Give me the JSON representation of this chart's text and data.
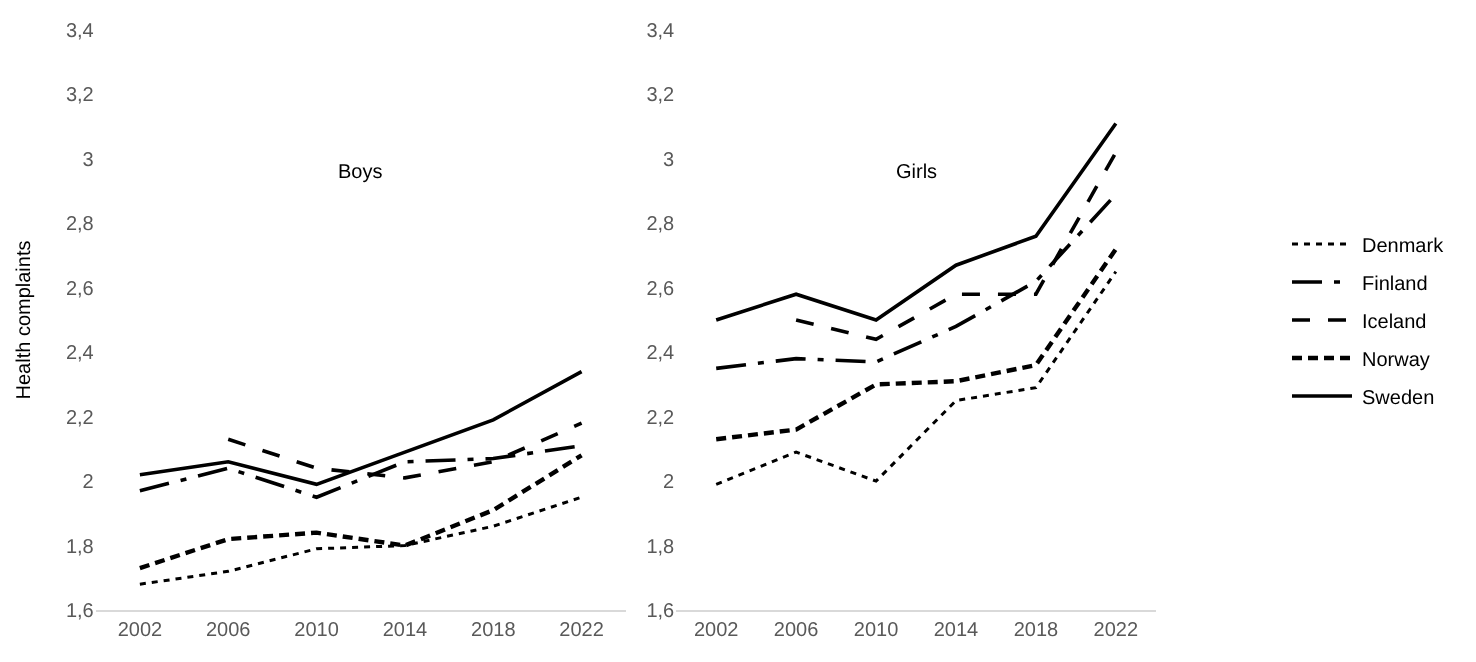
{
  "chart_data": [
    {
      "type": "line",
      "title": "Boys",
      "ylabel": "Health complaints",
      "categories": [
        "2002",
        "2006",
        "2010",
        "2014",
        "2018",
        "2022"
      ],
      "ylim": [
        1.6,
        3.4
      ],
      "yticks": [
        {
          "value": 1.6,
          "label": "1,6"
        },
        {
          "value": 1.8,
          "label": "1,8"
        },
        2,
        {
          "value": 2.2,
          "label": "2,2"
        },
        {
          "value": 2.4,
          "label": "2,4"
        },
        {
          "value": 2.6,
          "label": "2,6"
        },
        {
          "value": 2.8,
          "label": "2,8"
        },
        3,
        {
          "value": 3.2,
          "label": "3,2"
        },
        {
          "value": 3.4,
          "label": "3,4"
        }
      ],
      "legend": false,
      "marker": "none",
      "series": [
        {
          "color": "#000000",
          "line_style": "dotted",
          "values": [
            1.68,
            1.72,
            1.79,
            1.8,
            1.86,
            1.95
          ]
        },
        {
          "color": "#000000",
          "line_style": "dashed",
          "values": [
            1.97,
            2.04,
            1.95,
            2.06,
            2.07,
            2.11
          ]
        },
        {
          "color": "#000000",
          "line_style": "dashed",
          "values": [
            null,
            2.13,
            2.04,
            2.01,
            2.06,
            2.18
          ]
        },
        {
          "color": "#000000",
          "line_style": "dashed",
          "values": [
            1.73,
            1.82,
            1.84,
            1.8,
            1.91,
            2.08
          ]
        },
        {
          "color": "#000000",
          "line_style": "solid",
          "values": [
            2.02,
            2.06,
            1.99,
            2.09,
            2.19,
            2.34
          ]
        }
      ]
    },
    {
      "type": "line",
      "title": "Girls",
      "categories": [
        "2002",
        "2006",
        "2010",
        "2014",
        "2018",
        "2022"
      ],
      "ylim": [
        1.6,
        3.4
      ],
      "yticks": [
        {
          "value": 1.6,
          "label": "1,6"
        },
        {
          "value": 1.8,
          "label": "1,8"
        },
        2,
        {
          "value": 2.2,
          "label": "2,2"
        },
        {
          "value": 2.4,
          "label": "2,4"
        },
        {
          "value": 2.6,
          "label": "2,6"
        },
        {
          "value": 2.8,
          "label": "2,8"
        },
        3,
        {
          "value": 3.2,
          "label": "3,2"
        },
        {
          "value": 3.4,
          "label": "3,4"
        }
      ],
      "legend": "right",
      "marker": "none",
      "series": [
        {
          "name": "Denmark",
          "color": "#000000",
          "line_style": "dotted",
          "values": [
            1.99,
            2.09,
            2.0,
            2.25,
            2.29,
            2.65
          ]
        },
        {
          "name": "Finland",
          "color": "#000000",
          "line_style": "dashed",
          "values": [
            2.35,
            2.38,
            2.37,
            2.48,
            2.62,
            2.89
          ]
        },
        {
          "name": "Iceland",
          "color": "#000000",
          "line_style": "dashed",
          "values": [
            null,
            2.5,
            2.44,
            2.58,
            2.58,
            3.02
          ]
        },
        {
          "name": "Norway",
          "color": "#000000",
          "line_style": "dashed",
          "values": [
            2.13,
            2.16,
            2.3,
            2.31,
            2.36,
            2.72
          ]
        },
        {
          "name": "Sweden",
          "color": "#000000",
          "line_style": "solid",
          "values": [
            2.5,
            2.58,
            2.5,
            2.67,
            2.76,
            3.11
          ]
        }
      ]
    }
  ]
}
